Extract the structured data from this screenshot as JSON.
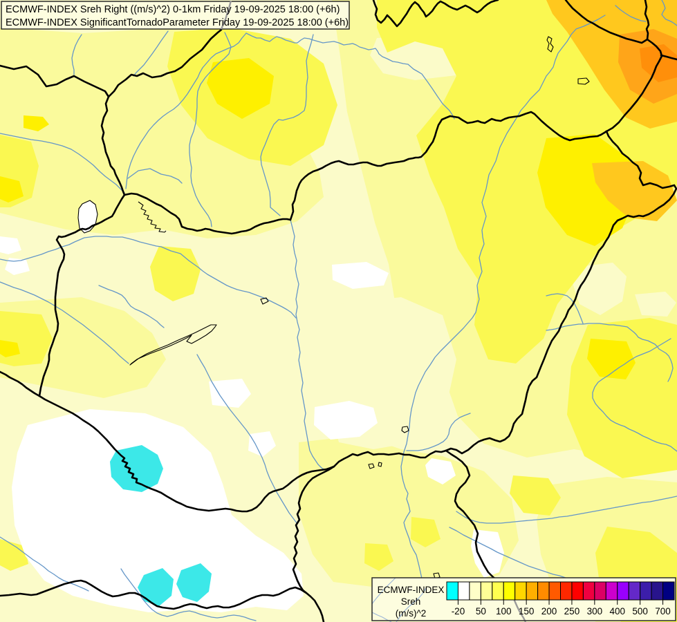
{
  "title_box": {
    "line1": "ECMWF-INDEX Sreh Right ((m/s)^2) 0-1km Friday 19-09-2025 18:00 (+6h)",
    "line2": "ECMWF-INDEX SignificantTornadoParameter Friday 19-09-2025 18:00 (+6h)"
  },
  "legend": {
    "label_line1": "ECMWF-INDEX",
    "label_line2": "Sreh",
    "label_line3": "(m/s)^2",
    "colorbar": {
      "colors": [
        "#00FFFF",
        "#FFFFFF",
        "#FFFFC8",
        "#FFFF96",
        "#FFFF50",
        "#FFFF00",
        "#FFD700",
        "#FFAF00",
        "#FF8C00",
        "#FF5A00",
        "#FF2800",
        "#FF0000",
        "#F00040",
        "#DC0064",
        "#CC00CC",
        "#9900FF",
        "#6428C8",
        "#3C1EAA",
        "#28148C",
        "#000082"
      ],
      "tick_labels": [
        "-20",
        "50",
        "100",
        "150",
        "200",
        "250",
        "300",
        "400",
        "500",
        "700"
      ]
    }
  },
  "palette": {
    "tier1": "#FBFBC9",
    "tier2": "#FAFA9C",
    "tier3": "#FAF851",
    "tier4": "#FEF000",
    "gold": "#FFC81E",
    "orange": "#FFA519",
    "deep_orange": "#FF8F0A",
    "white": "#FFFFFF",
    "cyan": "#3CE8E8",
    "river": "#6496C8",
    "muted_river": "#9FB8D8",
    "border": "#000000",
    "muted_border": "#9A9A9A",
    "box_bg": "#FDFDDF",
    "box_border": "#2A2A2A"
  }
}
